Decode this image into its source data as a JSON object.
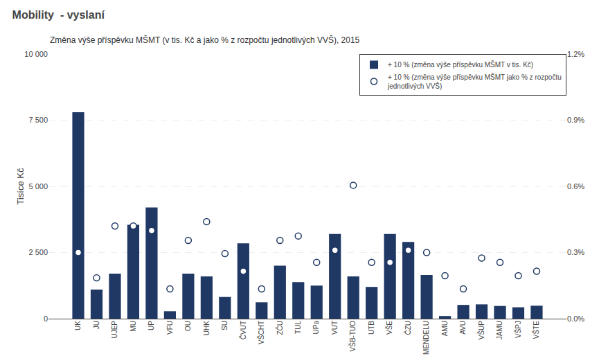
{
  "chart_data": {
    "type": "bar",
    "title": "Mobility  - vyslaní",
    "subtitle": "Změna výše příspěvku MŠMT (v tis. Kč a jako % z rozpočtu jednotlivých VVŠ), 2015",
    "categories": [
      "UK",
      "JU",
      "UJEP",
      "MU",
      "UP",
      "VFU",
      "OU",
      "UHK",
      "SU",
      "ČVUT",
      "VŠCHT",
      "ZČU",
      "TUL",
      "UPa",
      "VUT",
      "VŠB-TUO",
      "UTB",
      "VŠE",
      "ČZU",
      "MENDELU",
      "AMU",
      "AVU",
      "VŠUP",
      "JAMU",
      "VŠPJ",
      "VŠTE"
    ],
    "series": [
      {
        "name": "+ 10 % (změna výše příspěvku MŠMT v tis. Kč)",
        "type": "bar",
        "color": "#1F3864",
        "values": [
          7800,
          1100,
          1700,
          3550,
          4200,
          280,
          1700,
          1600,
          820,
          2850,
          620,
          2000,
          1380,
          1250,
          3200,
          1600,
          1200,
          3200,
          2900,
          1650,
          100,
          520,
          540,
          480,
          430,
          490
        ]
      },
      {
        "name": "+ 10 % (změna výše příspěvku MŠMT jako % z rozpočtu\njednotlivých VVŠ)",
        "type": "scatter",
        "color": "#1F3864",
        "marker": "circle",
        "axis": "y2",
        "values": [
          0.3,
          0.185,
          0.42,
          0.42,
          0.4,
          0.135,
          0.355,
          0.44,
          0.295,
          0.215,
          0.135,
          0.355,
          0.375,
          0.255,
          0.31,
          0.605,
          0.255,
          0.255,
          0.31,
          0.3,
          0.195,
          0.135,
          0.275,
          0.255,
          0.195,
          0.215
        ]
      }
    ],
    "ylabel": "Tisíce Kč",
    "ylim": [
      0,
      10000
    ],
    "yticks": [
      0,
      {
        "value": 2500,
        "label": "2 500"
      },
      {
        "value": 5000,
        "label": "5 000"
      },
      {
        "value": 7500,
        "label": "7 500"
      },
      {
        "value": 10000,
        "label": "10 000"
      }
    ],
    "y2lim": [
      0,
      1.2
    ],
    "y2ticks": [
      {
        "value": 0.0,
        "label": "0.0%"
      },
      {
        "value": 0.3,
        "label": "0.3%"
      },
      {
        "value": 0.6,
        "label": "0.6%"
      },
      {
        "value": 0.9,
        "label": "0.9%"
      },
      {
        "value": 1.2,
        "label": "1.2%"
      }
    ],
    "grid": true,
    "legend": "upper right"
  }
}
